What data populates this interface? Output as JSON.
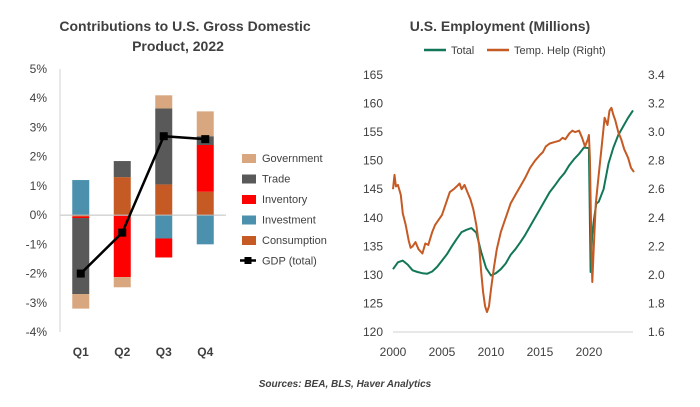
{
  "source": "Sources: BEA, BLS, Haver Analytics",
  "chart_data": [
    {
      "type": "bar",
      "stacked": true,
      "title_lines": [
        "Contributions  to U.S. Gross Domestic",
        "Product, 2022"
      ],
      "categories": [
        "Q1",
        "Q2",
        "Q3",
        "Q4"
      ],
      "ylim": [
        -4,
        5
      ],
      "ytick_values": [
        -4,
        -3,
        -2,
        -1,
        0,
        1,
        2,
        3,
        4,
        5
      ],
      "ytick_labels": [
        "-4%",
        "-3%",
        "-2%",
        "-1%",
        "0%",
        "1%",
        "2%",
        "3%",
        "4%",
        "5%"
      ],
      "grid": false,
      "series": [
        {
          "name": "Consumption",
          "color": "#c55a24",
          "values": [
            -0.05,
            1.3,
            1.05,
            0.8
          ]
        },
        {
          "name": "Investment",
          "color": "#4b91ad",
          "values": [
            1.2,
            -0.02,
            -0.8,
            -1.0
          ]
        },
        {
          "name": "Inventory",
          "color": "#ff0000",
          "values": [
            -0.05,
            -2.1,
            -0.65,
            1.6
          ]
        },
        {
          "name": "Trade",
          "color": "#595959",
          "values": [
            -2.6,
            0.55,
            2.6,
            0.3
          ]
        },
        {
          "name": "Government",
          "color": "#d8a780",
          "values": [
            -0.5,
            -0.35,
            0.45,
            0.85
          ]
        }
      ],
      "line": {
        "name": "GDP (total)",
        "color": "#000000",
        "values": [
          -2.0,
          -0.6,
          2.7,
          2.6
        ]
      },
      "legend_order": [
        "Government",
        "Trade",
        "Inventory",
        "Investment",
        "Consumption",
        "GDP (total)"
      ]
    },
    {
      "type": "line",
      "title": "U.S. Employment (Millions)",
      "xlim": [
        2000,
        2024.5
      ],
      "xtick_values": [
        2000,
        2005,
        2010,
        2015,
        2020
      ],
      "xtick_labels": [
        "2000",
        "2005",
        "2010",
        "2015",
        "2020"
      ],
      "y_left": {
        "lim": [
          120,
          165
        ],
        "tick_values": [
          120,
          125,
          130,
          135,
          140,
          145,
          150,
          155,
          160,
          165
        ],
        "tick_labels": [
          "120",
          "125",
          "130",
          "135",
          "140",
          "145",
          "150",
          "155",
          "160",
          "165"
        ]
      },
      "y_right": {
        "lim": [
          1.6,
          3.4
        ],
        "tick_values": [
          1.6,
          1.8,
          2.0,
          2.2,
          2.4,
          2.6,
          2.8,
          3.0,
          3.2,
          3.4
        ],
        "tick_labels": [
          "1.6",
          "1.8",
          "2.0",
          "2.2",
          "2.4",
          "2.6",
          "2.8",
          "3.0",
          "3.2",
          "3.4"
        ]
      },
      "grid": false,
      "legend": [
        "Total",
        "Temp. Help (Right)"
      ],
      "series": [
        {
          "name": "Total",
          "axis": "left",
          "color": "#127758",
          "x": [
            2000.0,
            2000.5,
            2001.0,
            2001.5,
            2002.0,
            2002.5,
            2003.0,
            2003.5,
            2004.0,
            2004.5,
            2005.0,
            2005.5,
            2006.0,
            2006.5,
            2007.0,
            2007.5,
            2008.0,
            2008.5,
            2009.0,
            2009.5,
            2010.0,
            2010.5,
            2011.0,
            2011.5,
            2012.0,
            2012.5,
            2013.0,
            2013.5,
            2014.0,
            2014.5,
            2015.0,
            2015.5,
            2016.0,
            2016.5,
            2017.0,
            2017.5,
            2018.0,
            2018.5,
            2019.0,
            2019.5,
            2020.0,
            2020.17,
            2020.33,
            2020.5,
            2020.75,
            2021.0,
            2021.5,
            2022.0,
            2022.5,
            2023.0,
            2023.5,
            2024.0,
            2024.5
          ],
          "y": [
            131.0,
            132.2,
            132.5,
            131.8,
            130.8,
            130.5,
            130.3,
            130.2,
            130.6,
            131.4,
            132.5,
            133.6,
            135.0,
            136.3,
            137.5,
            137.9,
            138.2,
            137.4,
            134.0,
            131.2,
            129.9,
            130.3,
            131.0,
            132.0,
            133.5,
            134.5,
            135.7,
            137.0,
            138.5,
            140.0,
            141.5,
            143.0,
            144.5,
            145.6,
            146.8,
            147.8,
            149.2,
            150.3,
            151.2,
            152.3,
            152.2,
            130.5,
            137.0,
            139.5,
            142.5,
            142.8,
            145.0,
            149.5,
            152.3,
            154.5,
            156.0,
            157.5,
            158.8
          ]
        },
        {
          "name": "Temp. Help (Right)",
          "axis": "right",
          "color": "#c55a24",
          "x": [
            2000.0,
            2000.15,
            2000.3,
            2000.5,
            2000.8,
            2001.0,
            2001.3,
            2001.6,
            2001.8,
            2002.0,
            2002.3,
            2002.6,
            2003.0,
            2003.3,
            2003.6,
            2004.0,
            2004.3,
            2004.6,
            2005.0,
            2005.5,
            2005.8,
            2006.2,
            2006.5,
            2006.8,
            2007.0,
            2007.3,
            2007.6,
            2007.9,
            2008.2,
            2008.5,
            2008.8,
            2009.0,
            2009.2,
            2009.4,
            2009.6,
            2009.8,
            2010.0,
            2010.3,
            2010.6,
            2011.0,
            2011.5,
            2012.0,
            2012.5,
            2013.0,
            2013.5,
            2014.0,
            2014.5,
            2015.0,
            2015.3,
            2015.6,
            2016.0,
            2016.5,
            2017.0,
            2017.3,
            2017.6,
            2018.0,
            2018.3,
            2018.6,
            2019.0,
            2019.3,
            2019.6,
            2019.9,
            2020.0,
            2020.1,
            2020.25,
            2020.35,
            2020.5,
            2020.7,
            2021.0,
            2021.3,
            2021.6,
            2021.9,
            2022.1,
            2022.3,
            2022.5,
            2022.7,
            2023.0,
            2023.3,
            2023.6,
            2024.0,
            2024.3,
            2024.6
          ],
          "y": [
            2.6,
            2.7,
            2.62,
            2.63,
            2.56,
            2.43,
            2.35,
            2.24,
            2.19,
            2.2,
            2.23,
            2.18,
            2.15,
            2.22,
            2.21,
            2.3,
            2.35,
            2.38,
            2.42,
            2.52,
            2.58,
            2.6,
            2.62,
            2.64,
            2.6,
            2.63,
            2.58,
            2.53,
            2.46,
            2.35,
            2.2,
            2.02,
            1.88,
            1.78,
            1.74,
            1.78,
            1.9,
            2.05,
            2.18,
            2.3,
            2.4,
            2.5,
            2.56,
            2.62,
            2.68,
            2.75,
            2.8,
            2.84,
            2.86,
            2.9,
            2.92,
            2.93,
            2.94,
            2.96,
            2.95,
            2.99,
            3.01,
            3.0,
            3.01,
            2.96,
            2.9,
            2.95,
            2.98,
            2.82,
            2.2,
            1.95,
            2.2,
            2.5,
            2.7,
            2.9,
            3.1,
            3.05,
            3.15,
            3.17,
            3.12,
            3.08,
            3.0,
            2.95,
            2.88,
            2.82,
            2.75,
            2.72
          ]
        }
      ]
    }
  ]
}
